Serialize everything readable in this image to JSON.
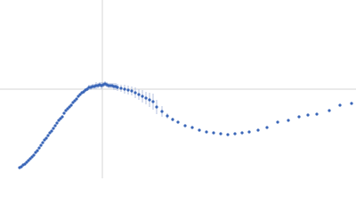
{
  "chart_data": {
    "type": "scatter",
    "x": [
      22,
      24,
      26,
      28,
      30,
      32,
      34,
      36,
      38,
      40,
      42,
      44,
      46,
      48,
      50,
      52,
      54,
      56,
      58,
      60,
      62,
      64,
      66,
      68,
      70,
      72,
      74,
      76,
      78,
      80,
      82,
      84,
      86,
      88,
      90,
      92,
      94,
      96,
      98,
      100,
      102,
      104,
      106,
      108,
      110,
      112,
      114,
      116,
      118,
      120,
      122,
      124,
      126,
      128,
      130,
      132,
      136,
      140,
      144,
      148,
      152,
      156,
      160,
      164,
      168,
      172,
      176,
      182,
      188,
      194,
      200,
      208,
      216,
      224,
      232,
      240,
      248,
      256,
      264,
      272,
      280,
      290,
      300,
      312,
      324,
      336,
      346,
      356,
      370,
      382,
      395
    ],
    "series": [
      {
        "color": "#3a66b8",
        "values": [
          12,
          13,
          15,
          16,
          18,
          20,
          22,
          24,
          26,
          29,
          31,
          34,
          37,
          40,
          43,
          45,
          48,
          51,
          53,
          56,
          59,
          62,
          65,
          67,
          69,
          73,
          76,
          78,
          80,
          82,
          85,
          87,
          89,
          92,
          94,
          96,
          97,
          99,
          100,
          102,
          102,
          103,
          103,
          104,
          104,
          105,
          104,
          105,
          106,
          105,
          104,
          104,
          104,
          103,
          103,
          102,
          101,
          100,
          99,
          98,
          96,
          94,
          92,
          90,
          88,
          86,
          80,
          75,
          70,
          66,
          63,
          59,
          57,
          54,
          52,
          51,
          50,
          49,
          50,
          51,
          52,
          54,
          57,
          63,
          65,
          69,
          71,
          72,
          76,
          82,
          84
        ],
        "errors": [
          1,
          1,
          1,
          1,
          1,
          1,
          1,
          1,
          1,
          1,
          1,
          1,
          1,
          1,
          1,
          1,
          1,
          1,
          1,
          1,
          1,
          1,
          1,
          1,
          1,
          1,
          1,
          1,
          1,
          1,
          1,
          1,
          1,
          1,
          1,
          1,
          2,
          2,
          2,
          3,
          3,
          3,
          3,
          4,
          3,
          3,
          4,
          3,
          3,
          3,
          3,
          3,
          3,
          4,
          4,
          4,
          4,
          5,
          5,
          5,
          6,
          6,
          7,
          7,
          8,
          9,
          8,
          6,
          3,
          2,
          1,
          1,
          1,
          1,
          1,
          1,
          1,
          1,
          1,
          1,
          1,
          1,
          1,
          1,
          1,
          1,
          1,
          1,
          1,
          1,
          1
        ]
      }
    ],
    "xlim": [
      0,
      400
    ],
    "ylim": [
      0,
      200
    ],
    "crosshair": {
      "x": 115,
      "y": 100
    },
    "error_color": "#b4c2df",
    "crosshair_color": "#d6d6d6"
  }
}
